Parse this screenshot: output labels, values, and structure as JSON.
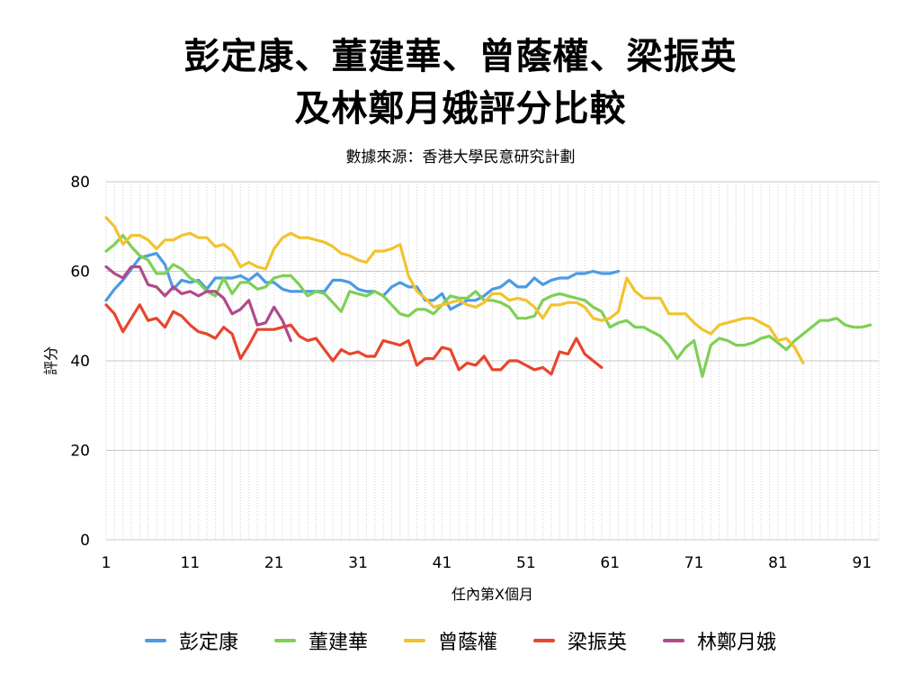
{
  "title_line1": "彭定康、董建華、曾蔭權、梁振英",
  "title_line2": "及林鄭月娥評分比較",
  "subtitle": "數據來源：香港大學民意研究計劃",
  "chart_data": {
    "type": "line",
    "xlabel": "任內第X個月",
    "ylabel": "評分",
    "ylim": [
      0,
      80
    ],
    "xlim": [
      1,
      93
    ],
    "yticks": [
      0,
      20,
      40,
      60,
      80
    ],
    "xticks": [
      1,
      11,
      21,
      31,
      41,
      51,
      61,
      71,
      81,
      91
    ],
    "grid": true,
    "legend_position": "bottom",
    "series": [
      {
        "name": "彭定康",
        "color": "#4a9be4",
        "values": [
          53.5,
          56,
          58,
          60.5,
          63,
          63.5,
          64,
          61.5,
          56,
          58,
          57.5,
          58,
          56,
          58.5,
          58.5,
          58.5,
          59,
          58,
          59.5,
          57.5,
          57.5,
          56,
          55.5,
          55.5,
          55.5,
          55.5,
          55.5,
          58,
          58,
          57.5,
          56,
          55.5,
          55.5,
          54.5,
          56.5,
          57.5,
          56.5,
          56.5,
          53.5,
          53.5,
          55,
          51.5,
          52.5,
          53.5,
          53.5,
          54.5,
          56,
          56.5,
          58,
          56.5,
          56.5,
          58.5,
          57,
          58,
          58.5,
          58.5,
          59.5,
          59.5,
          60,
          59.5,
          59.5,
          60
        ]
      },
      {
        "name": "董建華",
        "color": "#7ed055",
        "values": [
          64.5,
          66,
          68,
          65.5,
          63.5,
          62.5,
          59.5,
          59.5,
          61.5,
          60.5,
          58.5,
          57.5,
          55.5,
          54.5,
          58.5,
          55,
          57.5,
          57.5,
          56,
          56.5,
          58.5,
          59,
          59,
          57,
          54.5,
          55.5,
          55,
          53,
          51,
          55.5,
          55,
          54.5,
          55.5,
          54.5,
          52.5,
          50.5,
          50,
          51.5,
          51.5,
          50.5,
          52.5,
          54.5,
          54,
          54,
          55.5,
          53.5,
          53.5,
          53,
          52,
          49.5,
          49.5,
          50,
          53.5,
          54.5,
          55,
          54.5,
          54,
          53.5,
          52,
          51,
          47.5,
          48.5,
          49,
          47.5,
          47.5,
          46.5,
          45.5,
          43.5,
          40.5,
          43,
          44.5,
          36.5,
          43.5,
          45,
          44.5,
          43.5,
          43.5,
          44,
          45,
          45.5,
          44,
          42.5,
          44.5,
          46,
          47.5,
          49,
          49,
          49.5,
          48,
          47.5,
          47.5,
          48
        ]
      },
      {
        "name": "曾蔭權",
        "color": "#f2c32f",
        "values": [
          72,
          70,
          66,
          68,
          68,
          67,
          65,
          67,
          67,
          68,
          68.5,
          67.5,
          67.5,
          65.5,
          66,
          64.5,
          61,
          62,
          61,
          60.5,
          65,
          67.5,
          68.5,
          67.5,
          67.5,
          67,
          66.5,
          65.5,
          64,
          63.5,
          62.5,
          62,
          64.5,
          64.5,
          65,
          66,
          59,
          55.5,
          54,
          52,
          52.5,
          53,
          53.5,
          52.5,
          52,
          53,
          55,
          55,
          53.5,
          54,
          53.5,
          52,
          49.5,
          52.5,
          52.5,
          53,
          53,
          52,
          49.5,
          49,
          49.5,
          51,
          58.5,
          55.5,
          54,
          54,
          54,
          50.5,
          50.5,
          50.5,
          48.5,
          47,
          46,
          48,
          48.5,
          49,
          49.5,
          49.5,
          48.5,
          47.5,
          44.5,
          45,
          43,
          39.5
        ]
      },
      {
        "name": "梁振英",
        "color": "#e8452c",
        "values": [
          52.5,
          50.5,
          46.5,
          49.5,
          52.5,
          49,
          49.5,
          47.5,
          51,
          50,
          48,
          46.5,
          46,
          45,
          47.5,
          46,
          40.5,
          43.5,
          47,
          47,
          47,
          47.5,
          48,
          45.5,
          44.5,
          45,
          42.5,
          40,
          42.5,
          41.5,
          42,
          41,
          41,
          44.5,
          44,
          43.5,
          44.5,
          39,
          40.5,
          40.5,
          43,
          42.5,
          38,
          39.5,
          39,
          41,
          38,
          38,
          40,
          40,
          39,
          38,
          38.5,
          37,
          42,
          41.5,
          45,
          41.5,
          40,
          38.5
        ]
      },
      {
        "name": "林鄭月娥",
        "color": "#b04a8a",
        "values": [
          61,
          59.5,
          58.5,
          61,
          61,
          57,
          56.5,
          54.5,
          56.5,
          55,
          55.5,
          54.5,
          55.5,
          55.5,
          54,
          50.5,
          51.5,
          53.5,
          48,
          48.5,
          52,
          49,
          44.5
        ]
      }
    ]
  }
}
